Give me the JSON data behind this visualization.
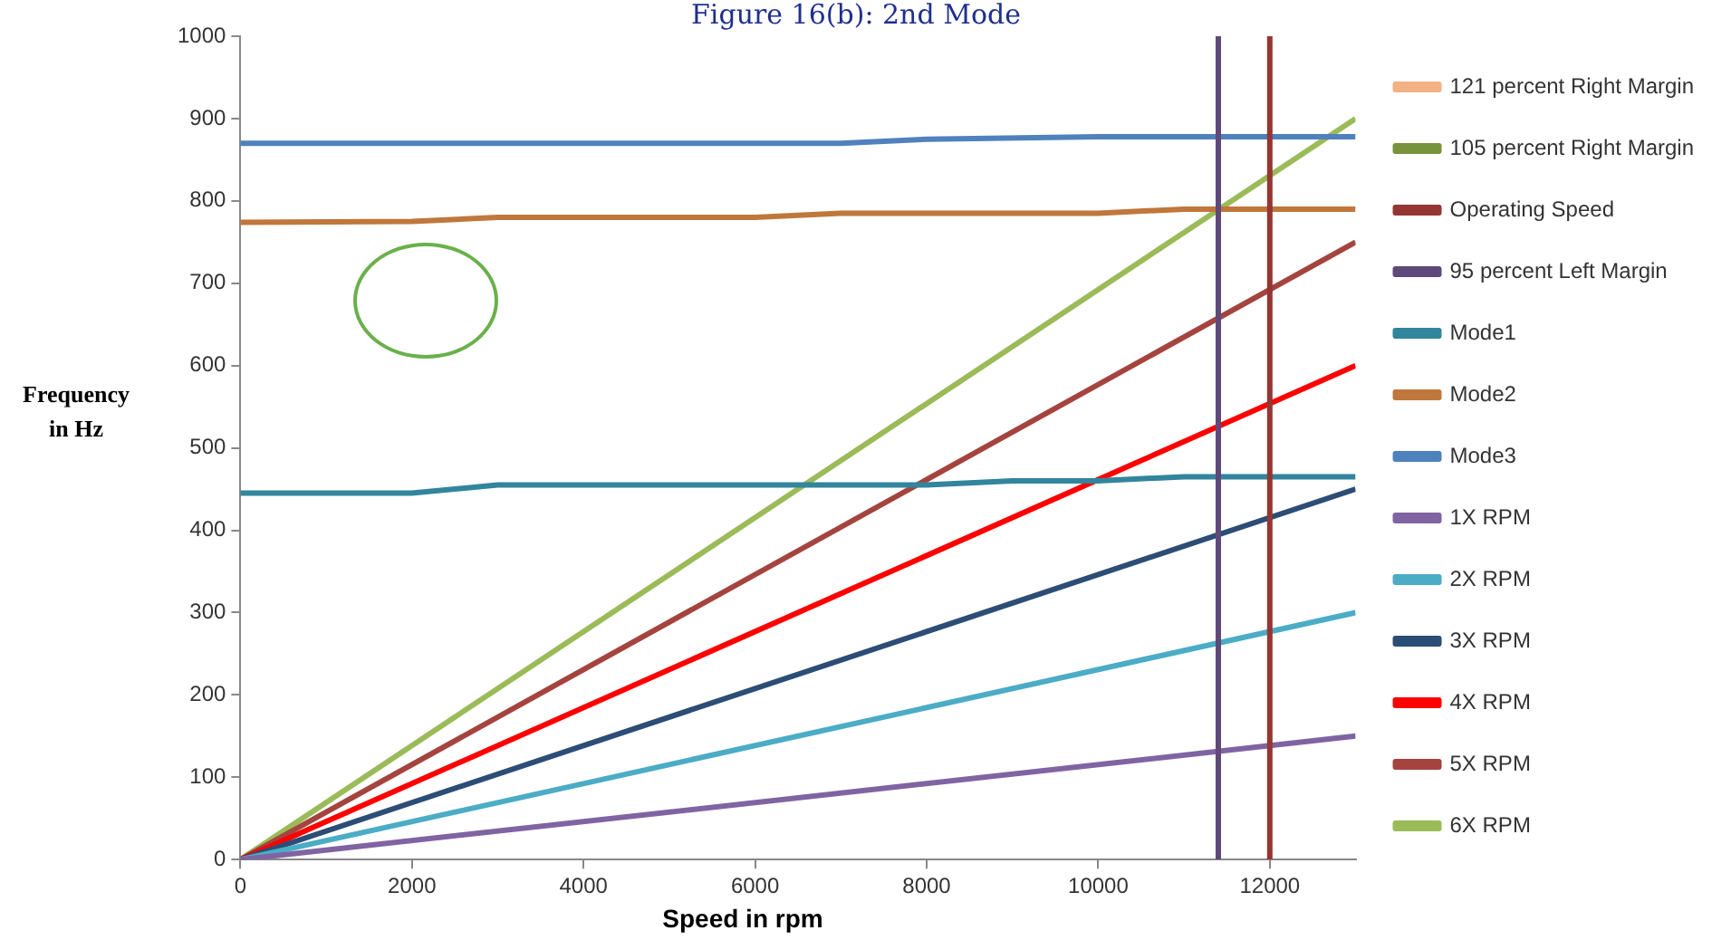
{
  "chart_data": {
    "type": "line",
    "title": "Figure 16(b): 2nd Mode",
    "xlabel": "Speed  in rpm",
    "ylabel": "Frequency in Hz",
    "xlim": [
      0,
      13000
    ],
    "xticks": [
      0,
      2000,
      4000,
      6000,
      8000,
      10000,
      12000
    ],
    "ylim": [
      0,
      1000
    ],
    "yticks": [
      0,
      100,
      200,
      300,
      400,
      500,
      600,
      700,
      800,
      900,
      1000
    ],
    "grid": false,
    "legend": "right",
    "marker": "none",
    "line_style": "solid",
    "series": [
      {
        "name": "121 percent Right Margin",
        "color": "#f4b183"
      },
      {
        "name": "105 percent Right Margin",
        "color": "#77933c"
      },
      {
        "name": "Operating Speed",
        "color": "#943634",
        "x": [
          12000,
          12000
        ],
        "values": [
          0,
          1000
        ]
      },
      {
        "name": "95 percent Left Margin",
        "color": "#5f497a",
        "x": [
          11400,
          11400
        ],
        "values": [
          0,
          1000
        ]
      },
      {
        "name": "Mode1",
        "color": "#31859c",
        "x": [
          0,
          2000,
          3000,
          8000,
          9000,
          10000,
          11000,
          13000
        ],
        "values": [
          445,
          445,
          455,
          455,
          460,
          460,
          465,
          465
        ]
      },
      {
        "name": "Mode2",
        "color": "#c0773b",
        "x": [
          0,
          2000,
          3000,
          6000,
          7000,
          10000,
          11000,
          13000
        ],
        "values": [
          774,
          775,
          780,
          780,
          785,
          785,
          790,
          790
        ]
      },
      {
        "name": "Mode3",
        "color": "#4f81bd",
        "x": [
          0,
          7000,
          8000,
          10000,
          13000
        ],
        "values": [
          870,
          870,
          875,
          878,
          878
        ]
      },
      {
        "name": "1X RPM",
        "color": "#8064a2",
        "x": [
          0,
          13000
        ],
        "values": [
          0,
          150
        ]
      },
      {
        "name": "2X RPM",
        "color": "#4bacc6",
        "x": [
          0,
          13000
        ],
        "values": [
          0,
          300
        ]
      },
      {
        "name": "3X RPM",
        "color": "#2c4d75",
        "x": [
          0,
          13000
        ],
        "values": [
          0,
          450
        ]
      },
      {
        "name": "4X RPM",
        "color": "#ff0000",
        "x": [
          0,
          13000
        ],
        "values": [
          0,
          600
        ]
      },
      {
        "name": "5X RPM",
        "color": "#a5443f",
        "x": [
          0,
          13000
        ],
        "values": [
          0,
          750
        ]
      },
      {
        "name": "6X RPM",
        "color": "#9bbb59",
        "x": [
          0,
          13000
        ],
        "values": [
          0,
          900
        ]
      }
    ]
  }
}
